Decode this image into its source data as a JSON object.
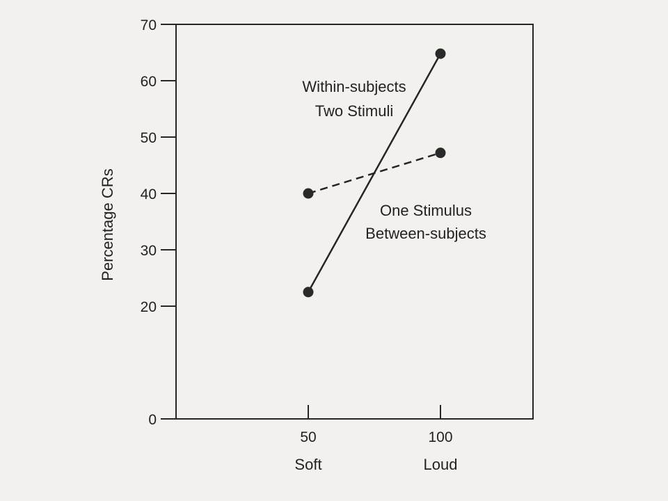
{
  "chart_data": {
    "type": "line",
    "ylabel": "Percentage CRs",
    "ylim": [
      0,
      70
    ],
    "y_ticks": [
      0,
      20,
      30,
      40,
      50,
      60,
      70
    ],
    "x_ticks": [
      50,
      100
    ],
    "x_tick_labels": [
      "50",
      "100"
    ],
    "x_category_labels": [
      "Soft",
      "Loud"
    ],
    "xlim": [
      0,
      135
    ],
    "series": [
      {
        "name": "Within-subjects Two Stimuli",
        "x": [
          50,
          100
        ],
        "values": [
          22.5,
          64.8
        ],
        "line_style": "solid"
      },
      {
        "name": "One Stimulus Between-subjects",
        "x": [
          50,
          100
        ],
        "values": [
          40,
          47.2
        ],
        "line_style": "dashed"
      }
    ],
    "annotations": [
      {
        "series": 0,
        "lines": [
          "Within-subjects",
          "Two Stimuli"
        ]
      },
      {
        "series": 1,
        "lines": [
          "One Stimulus",
          "Between-subjects"
        ]
      }
    ],
    "grid": false,
    "colors": {
      "line": "#252525",
      "point": "#2a2a2a",
      "background": "#f2f1ed"
    }
  }
}
